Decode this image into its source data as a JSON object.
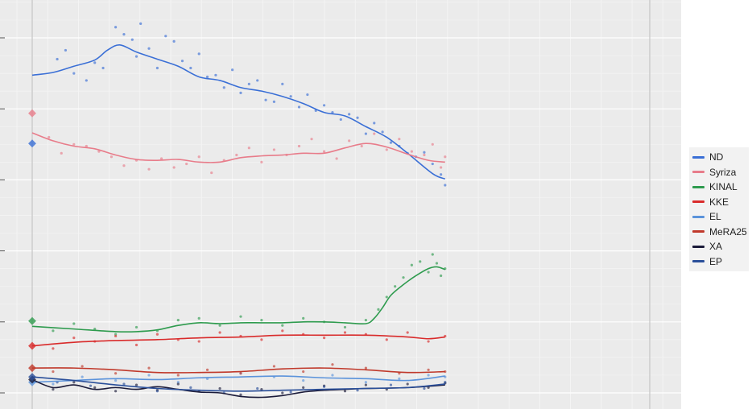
{
  "chart_data": {
    "type": "line",
    "title": "",
    "xlabel": "",
    "ylabel": "",
    "x_range": [
      0,
      100
    ],
    "y_range": [
      0,
      40
    ],
    "grid": true,
    "legend_position": "right",
    "series": [
      {
        "name": "ND",
        "color": "#3a6fd6",
        "election": 28.1,
        "trend": [
          [
            0,
            35.8
          ],
          [
            5,
            36.1
          ],
          [
            10,
            36.8
          ],
          [
            15,
            37.5
          ],
          [
            18,
            38.6
          ],
          [
            21,
            39.2
          ],
          [
            25,
            38.4
          ],
          [
            30,
            37.6
          ],
          [
            35,
            36.8
          ],
          [
            40,
            35.6
          ],
          [
            45,
            35.2
          ],
          [
            50,
            34.4
          ],
          [
            55,
            34.0
          ],
          [
            60,
            33.4
          ],
          [
            65,
            32.6
          ],
          [
            70,
            31.6
          ],
          [
            75,
            31.2
          ],
          [
            80,
            30.0
          ],
          [
            85,
            28.8
          ],
          [
            90,
            27.0
          ],
          [
            96,
            24.7
          ],
          [
            99,
            24.1
          ]
        ],
        "scatter": [
          [
            6,
            37.6
          ],
          [
            8,
            38.6
          ],
          [
            10,
            36.0
          ],
          [
            13,
            35.2
          ],
          [
            15,
            37.2
          ],
          [
            17,
            36.6
          ],
          [
            20,
            41.2
          ],
          [
            22,
            40.4
          ],
          [
            24,
            39.8
          ],
          [
            25,
            37.9
          ],
          [
            26,
            41.6
          ],
          [
            28,
            38.8
          ],
          [
            30,
            36.6
          ],
          [
            32,
            40.2
          ],
          [
            34,
            39.6
          ],
          [
            36,
            37.4
          ],
          [
            38,
            36.6
          ],
          [
            40,
            38.2
          ],
          [
            42,
            35.6
          ],
          [
            44,
            35.8
          ],
          [
            46,
            34.4
          ],
          [
            48,
            36.4
          ],
          [
            50,
            33.8
          ],
          [
            52,
            34.8
          ],
          [
            54,
            35.2
          ],
          [
            56,
            33.0
          ],
          [
            58,
            32.8
          ],
          [
            60,
            34.8
          ],
          [
            62,
            33.4
          ],
          [
            64,
            32.2
          ],
          [
            66,
            33.6
          ],
          [
            68,
            31.8
          ],
          [
            70,
            32.4
          ],
          [
            72,
            31.6
          ],
          [
            74,
            30.8
          ],
          [
            76,
            31.4
          ],
          [
            78,
            31.0
          ],
          [
            80,
            29.2
          ],
          [
            82,
            30.4
          ],
          [
            84,
            29.4
          ],
          [
            86,
            28.2
          ],
          [
            88,
            27.8
          ],
          [
            90,
            27.0
          ],
          [
            92,
            26.6
          ],
          [
            94,
            27.1
          ],
          [
            96,
            25.8
          ],
          [
            98,
            24.6
          ],
          [
            99,
            23.4
          ]
        ]
      },
      {
        "name": "Syriza",
        "color": "#e87c8a",
        "election": 31.5,
        "trend": [
          [
            0,
            29.3
          ],
          [
            5,
            28.4
          ],
          [
            10,
            27.8
          ],
          [
            15,
            27.5
          ],
          [
            20,
            26.8
          ],
          [
            25,
            26.3
          ],
          [
            30,
            26.2
          ],
          [
            35,
            26.3
          ],
          [
            40,
            26.0
          ],
          [
            45,
            26.0
          ],
          [
            50,
            26.5
          ],
          [
            55,
            26.7
          ],
          [
            60,
            26.8
          ],
          [
            65,
            27.0
          ],
          [
            70,
            27.0
          ],
          [
            75,
            27.6
          ],
          [
            80,
            28.1
          ],
          [
            85,
            27.7
          ],
          [
            90,
            26.9
          ],
          [
            95,
            26.2
          ],
          [
            99,
            26.0
          ]
        ],
        "scatter": [
          [
            4,
            28.8
          ],
          [
            7,
            27.0
          ],
          [
            10,
            28.0
          ],
          [
            13,
            27.8
          ],
          [
            16,
            27.2
          ],
          [
            19,
            26.6
          ],
          [
            22,
            25.6
          ],
          [
            25,
            26.2
          ],
          [
            28,
            25.2
          ],
          [
            31,
            26.4
          ],
          [
            34,
            25.4
          ],
          [
            37,
            25.8
          ],
          [
            40,
            26.6
          ],
          [
            43,
            24.8
          ],
          [
            46,
            26.2
          ],
          [
            49,
            26.8
          ],
          [
            52,
            27.6
          ],
          [
            55,
            26.0
          ],
          [
            58,
            27.4
          ],
          [
            61,
            26.8
          ],
          [
            64,
            27.8
          ],
          [
            67,
            28.6
          ],
          [
            70,
            27.2
          ],
          [
            73,
            26.4
          ],
          [
            76,
            28.4
          ],
          [
            79,
            27.8
          ],
          [
            82,
            29.2
          ],
          [
            85,
            27.4
          ],
          [
            88,
            28.6
          ],
          [
            91,
            27.2
          ],
          [
            94,
            26.8
          ],
          [
            96,
            28.0
          ],
          [
            98,
            25.4
          ],
          [
            99,
            26.6
          ]
        ]
      },
      {
        "name": "KINAL",
        "color": "#2e9b4e",
        "election": 8.1,
        "trend": [
          [
            0,
            7.5
          ],
          [
            10,
            7.2
          ],
          [
            20,
            6.9
          ],
          [
            25,
            6.9
          ],
          [
            30,
            7.1
          ],
          [
            35,
            7.6
          ],
          [
            40,
            7.9
          ],
          [
            45,
            7.8
          ],
          [
            50,
            7.9
          ],
          [
            55,
            7.9
          ],
          [
            60,
            7.9
          ],
          [
            65,
            8.0
          ],
          [
            70,
            8.0
          ],
          [
            75,
            7.9
          ],
          [
            80,
            7.8
          ],
          [
            82,
            8.4
          ],
          [
            84,
            9.6
          ],
          [
            86,
            11.0
          ],
          [
            89,
            12.2
          ],
          [
            92,
            13.2
          ],
          [
            95,
            14.0
          ],
          [
            97,
            14.2
          ],
          [
            99,
            13.9
          ]
        ],
        "scatter": [
          [
            5,
            7.0
          ],
          [
            10,
            7.8
          ],
          [
            15,
            7.2
          ],
          [
            20,
            6.6
          ],
          [
            25,
            7.4
          ],
          [
            30,
            7.0
          ],
          [
            35,
            8.2
          ],
          [
            40,
            8.4
          ],
          [
            45,
            7.6
          ],
          [
            50,
            8.6
          ],
          [
            55,
            8.2
          ],
          [
            60,
            7.6
          ],
          [
            65,
            8.4
          ],
          [
            70,
            8.0
          ],
          [
            75,
            7.4
          ],
          [
            80,
            8.2
          ],
          [
            83,
            9.4
          ],
          [
            85,
            10.8
          ],
          [
            87,
            12.0
          ],
          [
            89,
            13.0
          ],
          [
            91,
            14.4
          ],
          [
            93,
            14.8
          ],
          [
            95,
            13.6
          ],
          [
            96,
            15.6
          ],
          [
            97,
            14.6
          ],
          [
            98,
            13.2
          ],
          [
            99,
            14.0
          ]
        ]
      },
      {
        "name": "KKE",
        "color": "#d92b2b",
        "election": 5.3,
        "trend": [
          [
            0,
            5.3
          ],
          [
            10,
            5.7
          ],
          [
            20,
            5.9
          ],
          [
            30,
            6.0
          ],
          [
            40,
            6.2
          ],
          [
            50,
            6.3
          ],
          [
            60,
            6.5
          ],
          [
            70,
            6.5
          ],
          [
            80,
            6.5
          ],
          [
            90,
            6.3
          ],
          [
            95,
            6.1
          ],
          [
            99,
            6.3
          ]
        ],
        "scatter": [
          [
            5,
            5.0
          ],
          [
            10,
            6.2
          ],
          [
            15,
            5.8
          ],
          [
            20,
            6.4
          ],
          [
            25,
            5.4
          ],
          [
            30,
            6.6
          ],
          [
            35,
            6.0
          ],
          [
            40,
            5.8
          ],
          [
            45,
            6.8
          ],
          [
            50,
            6.4
          ],
          [
            55,
            6.0
          ],
          [
            60,
            7.0
          ],
          [
            65,
            6.6
          ],
          [
            70,
            6.2
          ],
          [
            75,
            6.8
          ],
          [
            80,
            6.6
          ],
          [
            85,
            6.0
          ],
          [
            90,
            6.8
          ],
          [
            95,
            5.8
          ],
          [
            99,
            6.4
          ]
        ]
      },
      {
        "name": "EL",
        "color": "#5b93db",
        "election": 1.2,
        "trend": [
          [
            0,
            1.2
          ],
          [
            10,
            1.4
          ],
          [
            20,
            1.6
          ],
          [
            30,
            1.5
          ],
          [
            40,
            1.7
          ],
          [
            50,
            1.8
          ],
          [
            60,
            1.9
          ],
          [
            70,
            1.7
          ],
          [
            80,
            1.6
          ],
          [
            90,
            1.4
          ],
          [
            99,
            1.9
          ]
        ],
        "scatter": [
          [
            5,
            1.0
          ],
          [
            12,
            1.8
          ],
          [
            20,
            1.4
          ],
          [
            28,
            2.0
          ],
          [
            35,
            1.2
          ],
          [
            42,
            1.6
          ],
          [
            50,
            2.2
          ],
          [
            58,
            1.8
          ],
          [
            65,
            1.4
          ],
          [
            72,
            2.0
          ],
          [
            80,
            1.2
          ],
          [
            88,
            1.6
          ],
          [
            95,
            2.0
          ],
          [
            99,
            1.8
          ]
        ]
      },
      {
        "name": "MeRA25",
        "color": "#c0392b",
        "election": 2.8,
        "trend": [
          [
            0,
            2.8
          ],
          [
            10,
            2.8
          ],
          [
            20,
            2.6
          ],
          [
            30,
            2.3
          ],
          [
            40,
            2.3
          ],
          [
            50,
            2.4
          ],
          [
            60,
            2.7
          ],
          [
            70,
            2.8
          ],
          [
            80,
            2.6
          ],
          [
            90,
            2.3
          ],
          [
            99,
            2.4
          ]
        ],
        "scatter": [
          [
            5,
            2.4
          ],
          [
            12,
            3.0
          ],
          [
            20,
            2.2
          ],
          [
            28,
            2.8
          ],
          [
            35,
            2.0
          ],
          [
            42,
            2.6
          ],
          [
            50,
            2.2
          ],
          [
            58,
            3.0
          ],
          [
            65,
            2.4
          ],
          [
            72,
            3.2
          ],
          [
            80,
            2.8
          ],
          [
            88,
            2.2
          ],
          [
            95,
            2.6
          ],
          [
            99,
            2.4
          ]
        ]
      },
      {
        "name": "XA",
        "color": "#1b1b3a",
        "election": 1.5,
        "trend": [
          [
            0,
            1.5
          ],
          [
            5,
            0.6
          ],
          [
            10,
            0.9
          ],
          [
            15,
            0.4
          ],
          [
            20,
            0.6
          ],
          [
            25,
            0.4
          ],
          [
            30,
            0.7
          ],
          [
            35,
            0.4
          ],
          [
            40,
            0.1
          ],
          [
            45,
            0.0
          ],
          [
            50,
            -0.4
          ],
          [
            55,
            -0.5
          ],
          [
            60,
            -0.3
          ],
          [
            65,
            0.1
          ],
          [
            70,
            0.3
          ],
          [
            75,
            0.4
          ],
          [
            80,
            0.5
          ],
          [
            90,
            0.6
          ],
          [
            99,
            0.9
          ]
        ],
        "scatter": [
          [
            5,
            0.4
          ],
          [
            10,
            1.2
          ],
          [
            15,
            0.6
          ],
          [
            20,
            0.2
          ],
          [
            25,
            0.9
          ],
          [
            30,
            0.3
          ],
          [
            35,
            1.0
          ],
          [
            40,
            0.2
          ],
          [
            45,
            0.5
          ],
          [
            50,
            -0.2
          ],
          [
            55,
            0.4
          ],
          [
            60,
            0.0
          ],
          [
            65,
            0.6
          ],
          [
            70,
            0.8
          ],
          [
            75,
            0.2
          ],
          [
            80,
            0.9
          ],
          [
            85,
            0.4
          ],
          [
            90,
            1.0
          ],
          [
            95,
            0.6
          ],
          [
            99,
            1.1
          ]
        ]
      },
      {
        "name": "EP",
        "color": "#2a4f9a",
        "election": 1.8,
        "trend": [
          [
            0,
            1.8
          ],
          [
            10,
            1.4
          ],
          [
            20,
            0.9
          ],
          [
            30,
            0.5
          ],
          [
            40,
            0.3
          ],
          [
            50,
            0.2
          ],
          [
            60,
            0.3
          ],
          [
            70,
            0.4
          ],
          [
            80,
            0.5
          ],
          [
            90,
            0.6
          ],
          [
            99,
            1.0
          ]
        ],
        "scatter": [
          [
            6,
            1.2
          ],
          [
            14,
            0.8
          ],
          [
            22,
            1.0
          ],
          [
            30,
            0.2
          ],
          [
            38,
            0.6
          ],
          [
            46,
            0.0
          ],
          [
            54,
            0.5
          ],
          [
            62,
            0.1
          ],
          [
            70,
            0.7
          ],
          [
            78,
            0.3
          ],
          [
            86,
            0.9
          ],
          [
            94,
            0.5
          ],
          [
            99,
            1.2
          ]
        ]
      }
    ]
  }
}
